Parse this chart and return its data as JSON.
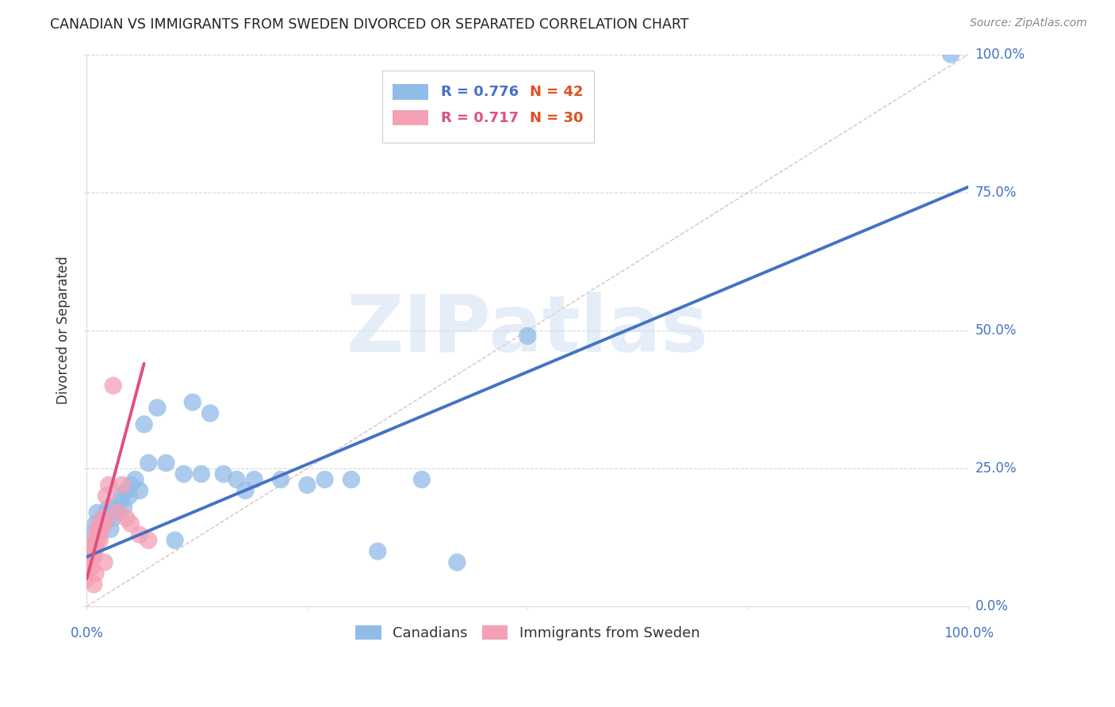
{
  "title": "CANADIAN VS IMMIGRANTS FROM SWEDEN DIVORCED OR SEPARATED CORRELATION CHART",
  "source": "Source: ZipAtlas.com",
  "ylabel": "Divorced or Separated",
  "watermark": "ZIPatlas",
  "background_color": "#ffffff",
  "grid_color": "#cccccc",
  "xlim": [
    0.0,
    1.0
  ],
  "ylim": [
    0.0,
    1.0
  ],
  "ytick_values": [
    0.0,
    0.25,
    0.5,
    0.75,
    1.0
  ],
  "ytick_labels": [
    "0.0%",
    "25.0%",
    "50.0%",
    "75.0%",
    "100.0%"
  ],
  "xtick_values": [
    0.0,
    0.25,
    0.5,
    0.75,
    1.0
  ],
  "canadians_color": "#92bce8",
  "immigrants_color": "#f4a0b5",
  "canadians_line_color": "#4472c4",
  "immigrants_line_color": "#e05080",
  "diagonal_color": "#d0b0b8",
  "legend_R_canadian": "R = 0.776",
  "legend_N_canadian": "N = 42",
  "legend_R_immigrant": "R = 0.717",
  "legend_N_immigrant": "N = 30",
  "canadian_R_color": "#4472c4",
  "canadian_N_color": "#e05020",
  "immigrant_R_color": "#e05080",
  "immigrant_N_color": "#e05020",
  "tick_label_color": "#4472c4",
  "canadians_x": [
    0.005,
    0.01,
    0.012,
    0.015,
    0.018,
    0.02,
    0.022,
    0.025,
    0.027,
    0.03,
    0.032,
    0.035,
    0.038,
    0.04,
    0.042,
    0.045,
    0.048,
    0.05,
    0.055,
    0.06,
    0.065,
    0.07,
    0.08,
    0.09,
    0.1,
    0.11,
    0.12,
    0.13,
    0.14,
    0.155,
    0.17,
    0.18,
    0.19,
    0.22,
    0.25,
    0.27,
    0.3,
    0.33,
    0.38,
    0.42,
    0.5,
    0.98
  ],
  "canadians_y": [
    0.13,
    0.15,
    0.17,
    0.14,
    0.16,
    0.15,
    0.17,
    0.18,
    0.14,
    0.16,
    0.18,
    0.17,
    0.19,
    0.2,
    0.18,
    0.21,
    0.2,
    0.22,
    0.23,
    0.21,
    0.33,
    0.26,
    0.36,
    0.26,
    0.12,
    0.24,
    0.37,
    0.24,
    0.35,
    0.24,
    0.23,
    0.21,
    0.23,
    0.23,
    0.22,
    0.23,
    0.23,
    0.1,
    0.23,
    0.08,
    0.49,
    1.0
  ],
  "immigrants_x": [
    0.0,
    0.002,
    0.004,
    0.005,
    0.006,
    0.007,
    0.008,
    0.009,
    0.01,
    0.011,
    0.012,
    0.013,
    0.014,
    0.015,
    0.016,
    0.018,
    0.02,
    0.022,
    0.025,
    0.03,
    0.035,
    0.04,
    0.045,
    0.05,
    0.06,
    0.07,
    0.01,
    0.02,
    0.015,
    0.008
  ],
  "immigrants_y": [
    0.05,
    0.08,
    0.1,
    0.07,
    0.09,
    0.11,
    0.09,
    0.1,
    0.11,
    0.13,
    0.12,
    0.14,
    0.13,
    0.15,
    0.14,
    0.16,
    0.15,
    0.2,
    0.22,
    0.4,
    0.17,
    0.22,
    0.16,
    0.15,
    0.13,
    0.12,
    0.06,
    0.08,
    0.12,
    0.04
  ],
  "canadian_line_x0": 0.0,
  "canadian_line_x1": 1.0,
  "canadian_line_y0": 0.09,
  "canadian_line_y1": 0.76,
  "immigrant_line_x0": 0.0,
  "immigrant_line_x1": 0.065,
  "immigrant_line_y0": 0.05,
  "immigrant_line_y1": 0.44
}
